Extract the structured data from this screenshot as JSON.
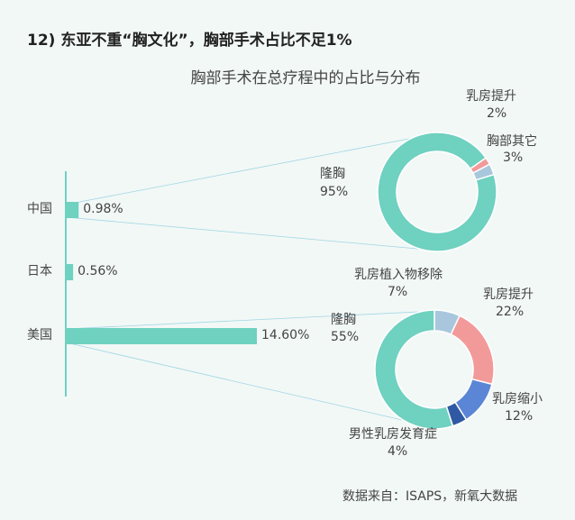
{
  "heading": "12) 东亚不重“胸文化”，胸部手术占比不足1%",
  "chart_data": [
    {
      "type": "bar",
      "orientation": "horizontal",
      "categories": [
        "中国",
        "日本",
        "美国"
      ],
      "values": [
        0.98,
        0.56,
        14.6
      ],
      "value_labels": [
        "0.98%",
        "0.56%",
        "14.60%"
      ],
      "color": "#6fd1c0"
    },
    {
      "type": "pie",
      "title": "胸部手术在总疗程中的占比与分布",
      "subtitle_for": "中国",
      "slices": [
        {
          "name": "乳房提升",
          "value": 2,
          "label": "2%",
          "color": "#f29a9a"
        },
        {
          "name": "胸部其它",
          "value": 3,
          "label": "3%",
          "color": "#a9c7dc"
        },
        {
          "name": "隆胸",
          "value": 95,
          "label": "95%",
          "color": "#6fd1c0"
        }
      ]
    },
    {
      "type": "pie",
      "for": "美国",
      "slices": [
        {
          "name": "乳房植入物移除",
          "value": 7,
          "label": "7%",
          "color": "#a9c7dc"
        },
        {
          "name": "乳房提升",
          "value": 22,
          "label": "22%",
          "color": "#f29a9a"
        },
        {
          "name": "乳房缩小",
          "value": 12,
          "label": "12%",
          "color": "#5b86d6"
        },
        {
          "name": "男性乳房发育症",
          "value": 4,
          "label": "4%",
          "color": "#2f5aa3"
        },
        {
          "name": "隆胸",
          "value": 55,
          "label": "55%",
          "color": "#6fd1c0"
        }
      ]
    }
  ],
  "source": "数据来自：ISAPS，新氧大数据"
}
